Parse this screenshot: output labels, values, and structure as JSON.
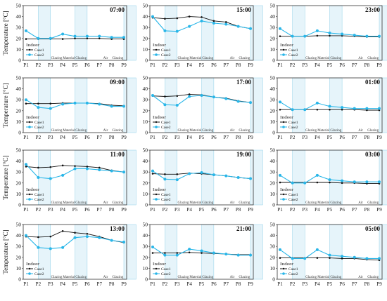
{
  "chart_data": {
    "type": "line",
    "ylabel": "Temperature [°C]",
    "ylim": [
      0,
      50
    ],
    "yticks": [
      0,
      10,
      20,
      30,
      40,
      50
    ],
    "categories": [
      "P1",
      "P2",
      "P3",
      "P4",
      "P5",
      "P6",
      "P7",
      "P8",
      "P9"
    ],
    "band_labels": [
      "Glazing",
      "Material",
      "Glazing",
      "Air",
      "Glazing"
    ],
    "legend": {
      "title": "Indoor",
      "case1": "Case1",
      "case2": "Case2"
    },
    "colors": {
      "case1": "#111111",
      "case2": "#29b6e8",
      "band": "#e6f4fa"
    },
    "panels": [
      {
        "title": "07:00",
        "series": [
          {
            "name": "Case1",
            "values": [
              19.5,
              19.5,
              19.5,
              19.5,
              20,
              20,
              20,
              19.5,
              19.5
            ]
          },
          {
            "name": "Case2",
            "values": [
              27,
              20,
              20,
              24,
              22,
              22,
              22,
              21,
              21
            ]
          }
        ]
      },
      {
        "title": "15:00",
        "series": [
          {
            "name": "Case1",
            "values": [
              39,
              38,
              38.5,
              40,
              39.5,
              36,
              35,
              31,
              29
            ]
          },
          {
            "name": "Case2",
            "values": [
              40,
              27,
              26.5,
              31,
              36,
              34,
              33,
              31,
              29
            ]
          }
        ]
      },
      {
        "title": "23:00",
        "series": [
          {
            "name": "Case1",
            "values": [
              22,
              22,
              22,
              22.5,
              22.5,
              22.5,
              22,
              21.5,
              21.5
            ]
          },
          {
            "name": "Case2",
            "values": [
              29,
              22,
              22,
              27,
              25,
              24,
              23,
              22,
              22
            ]
          }
        ]
      },
      {
        "title": "09:00",
        "series": [
          {
            "name": "Case1",
            "values": [
              26.5,
              26.5,
              26.5,
              27,
              27,
              27,
              26.5,
              25,
              24.5
            ]
          },
          {
            "name": "Case2",
            "values": [
              30,
              23,
              22,
              26,
              27,
              27,
              26,
              24,
              24
            ]
          }
        ]
      },
      {
        "title": "17:00",
        "series": [
          {
            "name": "Case1",
            "values": [
              33.5,
              33,
              33.5,
              35,
              34.5,
              32.5,
              31.5,
              29,
              27.5
            ]
          },
          {
            "name": "Case2",
            "values": [
              34,
              25.5,
              25,
              33,
              34,
              32.5,
              31,
              28.5,
              27.5
            ]
          }
        ]
      },
      {
        "title": "01:00",
        "series": [
          {
            "name": "Case1",
            "values": [
              21,
              21,
              21,
              21,
              21,
              21,
              21,
              20.5,
              20.5
            ]
          },
          {
            "name": "Case2",
            "values": [
              28,
              21,
              21,
              27,
              24,
              23,
              22,
              22,
              22
            ]
          }
        ]
      },
      {
        "title": "11:00",
        "series": [
          {
            "name": "Case1",
            "values": [
              35,
              34,
              34.5,
              36,
              35.5,
              35,
              34,
              31.5,
              30
            ]
          },
          {
            "name": "Case2",
            "values": [
              37,
              25,
              24,
              27,
              33,
              33,
              32,
              31,
              30
            ]
          }
        ]
      },
      {
        "title": "19:00",
        "series": [
          {
            "name": "Case1",
            "values": [
              28.5,
              28,
              28,
              29,
              28.5,
              27.5,
              26.5,
              25,
              24
            ]
          },
          {
            "name": "Case2",
            "values": [
              31,
              23.5,
              23,
              28.5,
              29.5,
              27.5,
              26.5,
              25,
              24
            ]
          }
        ]
      },
      {
        "title": "03:00",
        "series": [
          {
            "name": "Case1",
            "values": [
              20.5,
              20.5,
              20.5,
              20.5,
              20.5,
              20,
              20,
              19.5,
              19.5
            ]
          },
          {
            "name": "Case2",
            "values": [
              27,
              20,
              20,
              27,
              23,
              22,
              21,
              21,
              21
            ]
          }
        ]
      },
      {
        "title": "13:00",
        "series": [
          {
            "name": "Case1",
            "values": [
              39,
              38.5,
              39,
              44,
              42.5,
              41.5,
              39,
              35.5,
              33.5
            ]
          },
          {
            "name": "Case2",
            "values": [
              40,
              29,
              28,
              29,
              38,
              39,
              38,
              35.5,
              34
            ]
          }
        ]
      },
      {
        "title": "21:00",
        "series": [
          {
            "name": "Case1",
            "values": [
              24,
              24,
              24,
              24.5,
              24,
              23.5,
              23,
              22.5,
              22.5
            ]
          },
          {
            "name": "Case2",
            "values": [
              29.5,
              22,
              22,
              27.5,
              26,
              24,
              23,
              22,
              22
            ]
          }
        ]
      },
      {
        "title": "05:00",
        "series": [
          {
            "name": "Case1",
            "values": [
              19.5,
              19.5,
              19.5,
              19.5,
              19.5,
              19,
              19,
              18,
              17.5
            ]
          },
          {
            "name": "Case2",
            "values": [
              27,
              19,
              19,
              27,
              22,
              21,
              20,
              19,
              19
            ]
          }
        ]
      }
    ]
  }
}
